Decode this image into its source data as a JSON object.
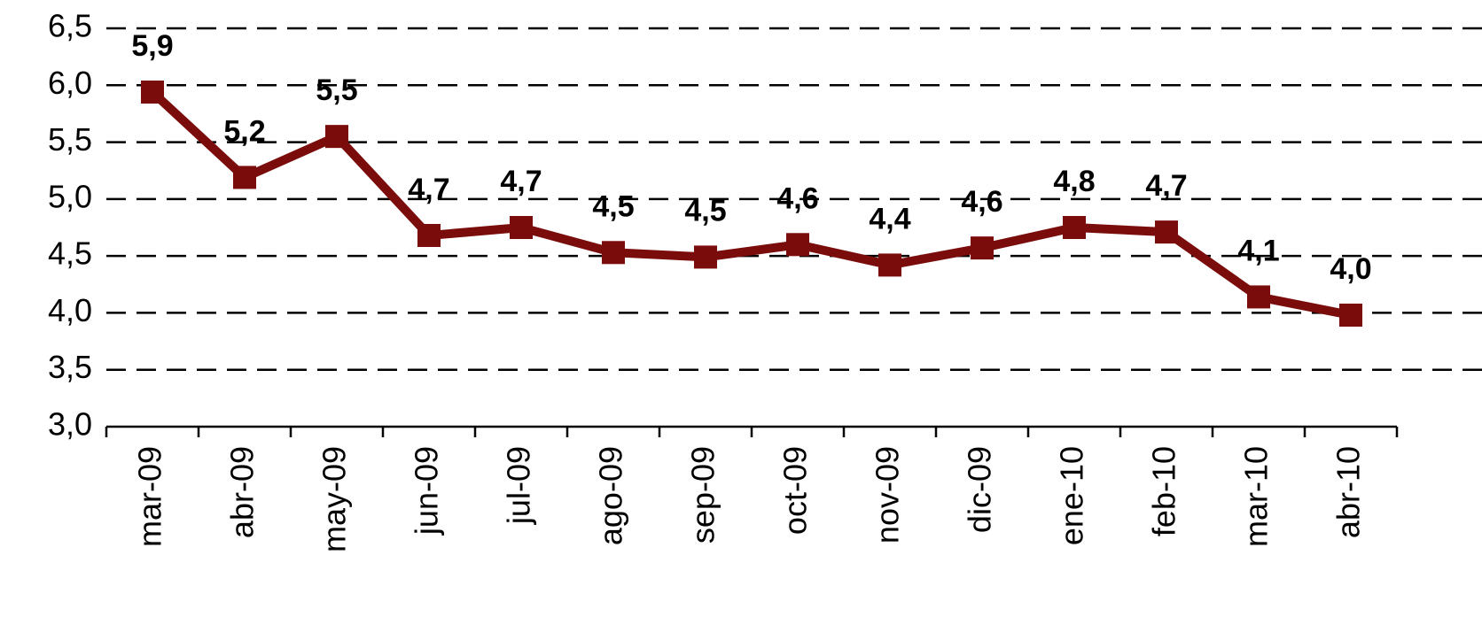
{
  "chart_data": {
    "type": "line",
    "categories": [
      "mar-09",
      "abr-09",
      "may-09",
      "jun-09",
      "jul-09",
      "ago-09",
      "sep-09",
      "oct-09",
      "nov-09",
      "dic-09",
      "ene-10",
      "feb-10",
      "mar-10",
      "abr-10"
    ],
    "series": [
      {
        "name": null,
        "color": "#7b0c0c",
        "values": [
          5.94,
          5.19,
          5.55,
          4.68,
          4.75,
          4.53,
          4.49,
          4.6,
          4.42,
          4.57,
          4.75,
          4.71,
          4.14,
          3.98
        ],
        "value_labels": [
          "5,9",
          "5,2",
          "5,5",
          "4,7",
          "4,7",
          "4,5",
          "4,5",
          "4,6",
          "4,4",
          "4,6",
          "4,8",
          "4,7",
          "4,1",
          "4,0"
        ]
      }
    ],
    "ylim": [
      3.0,
      6.5
    ],
    "yticks": [
      {
        "value": 3.0,
        "label": "3,0"
      },
      {
        "value": 3.5,
        "label": "3,5"
      },
      {
        "value": 4.0,
        "label": "4,0"
      },
      {
        "value": 4.5,
        "label": "4,5"
      },
      {
        "value": 5.0,
        "label": "5,0"
      },
      {
        "value": 5.5,
        "label": "5,5"
      },
      {
        "value": 6.0,
        "label": "6,0"
      },
      {
        "value": 6.5,
        "label": "6,5"
      }
    ],
    "grid": true
  }
}
